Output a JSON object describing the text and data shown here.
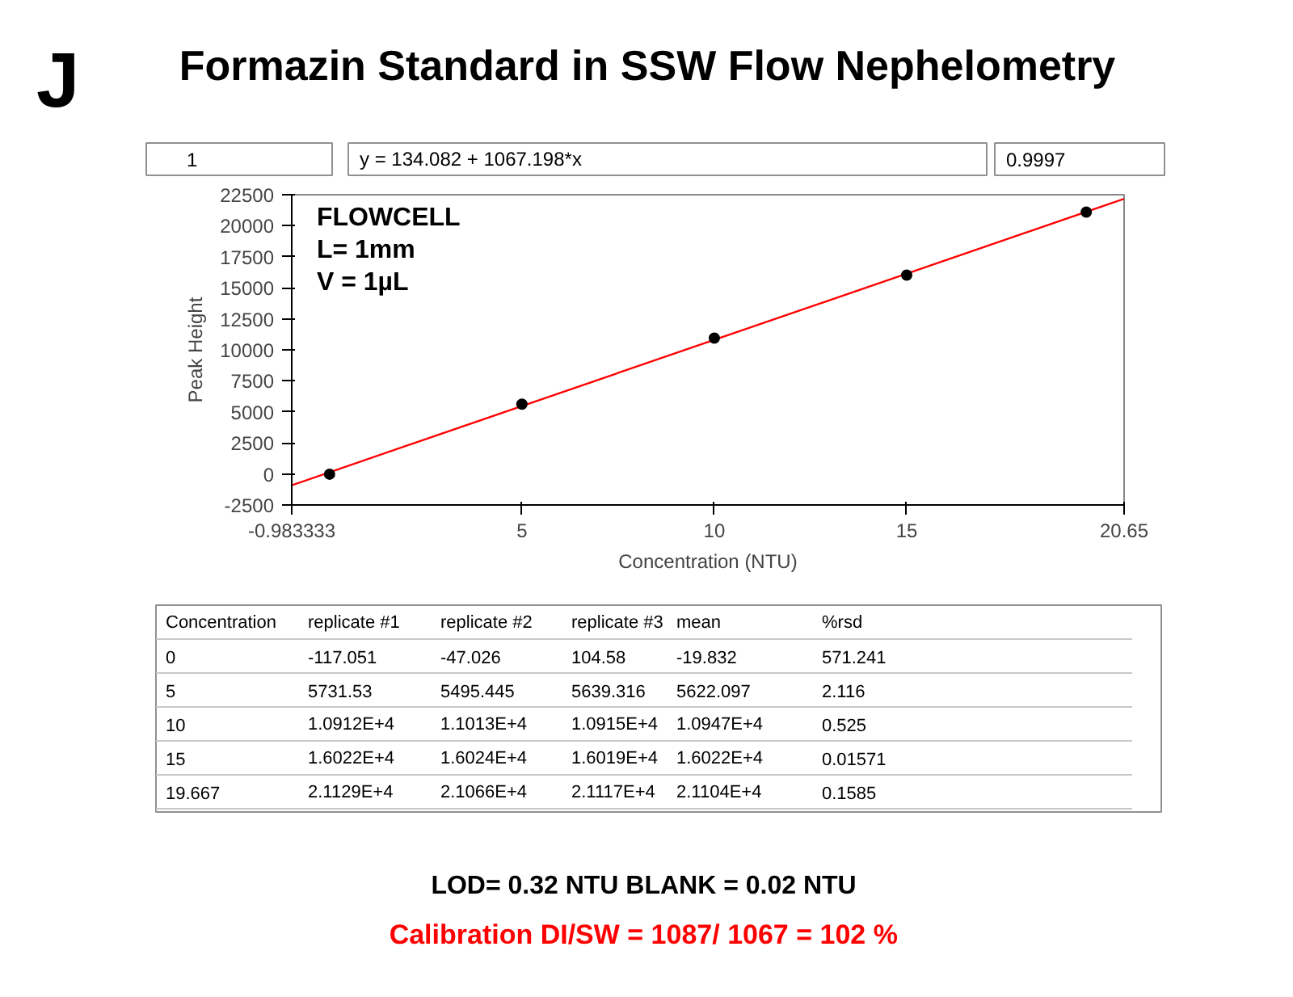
{
  "chart_data": [
    {
      "type": "scatter",
      "title": "Formazin Standard in SSW Flow Nephelometry",
      "xlabel": "Concentration (NTU)",
      "ylabel": "Peak Height",
      "x": [
        0,
        5,
        10,
        15,
        19.667
      ],
      "series": [
        {
          "color": "#000000",
          "values": [
            -19.832,
            5622.097,
            10947,
            16022,
            21104
          ]
        },
        {
          "type": "line",
          "marker": "none",
          "color": "#ff0000",
          "x": [
            -0.983333,
            20.65
          ],
          "values": [
            -915,
            22172
          ]
        }
      ],
      "xlim": [
        -0.983333,
        20.65
      ],
      "xticks": [
        -0.983333,
        5,
        10,
        15,
        20.65
      ],
      "ylim": [
        -2500,
        22500
      ],
      "yticks": [
        -2500,
        0,
        2500,
        5000,
        7500,
        10000,
        12500,
        15000,
        17500,
        20000,
        22500
      ],
      "grid": false,
      "marker": "circle",
      "annotations": [
        "J",
        "1",
        "y = 134.082 + 1067.198*x",
        "0.9997",
        "FLOWCELL",
        "L= 1mm",
        "V = 1µL"
      ]
    },
    {
      "type": "other",
      "annotations": [
        "Concentration",
        "replicate #1",
        "replicate #2",
        "replicate #3",
        "mean",
        "%rsd",
        "0",
        "-117.051",
        "-47.026",
        "104.58",
        "-19.832",
        "571.241",
        "5",
        "5731.53",
        "5495.445",
        "5639.316",
        "5622.097",
        "2.116",
        "10",
        "1.0912E+4",
        "1.1013E+4",
        "1.0915E+4",
        "1.0947E+4",
        "0.525",
        "15",
        "1.6022E+4",
        "1.6024E+4",
        "1.6019E+4",
        "1.6022E+4",
        "0.01571",
        "19.667",
        "2.1129E+4",
        "2.1066E+4",
        "2.1117E+4",
        "2.1104E+4",
        "0.1585",
        "LOD= 0.32 NTU  BLANK = 0.02 NTU",
        "Calibration  DI/SW = 1087/ 1067 = 102 %"
      ]
    }
  ]
}
